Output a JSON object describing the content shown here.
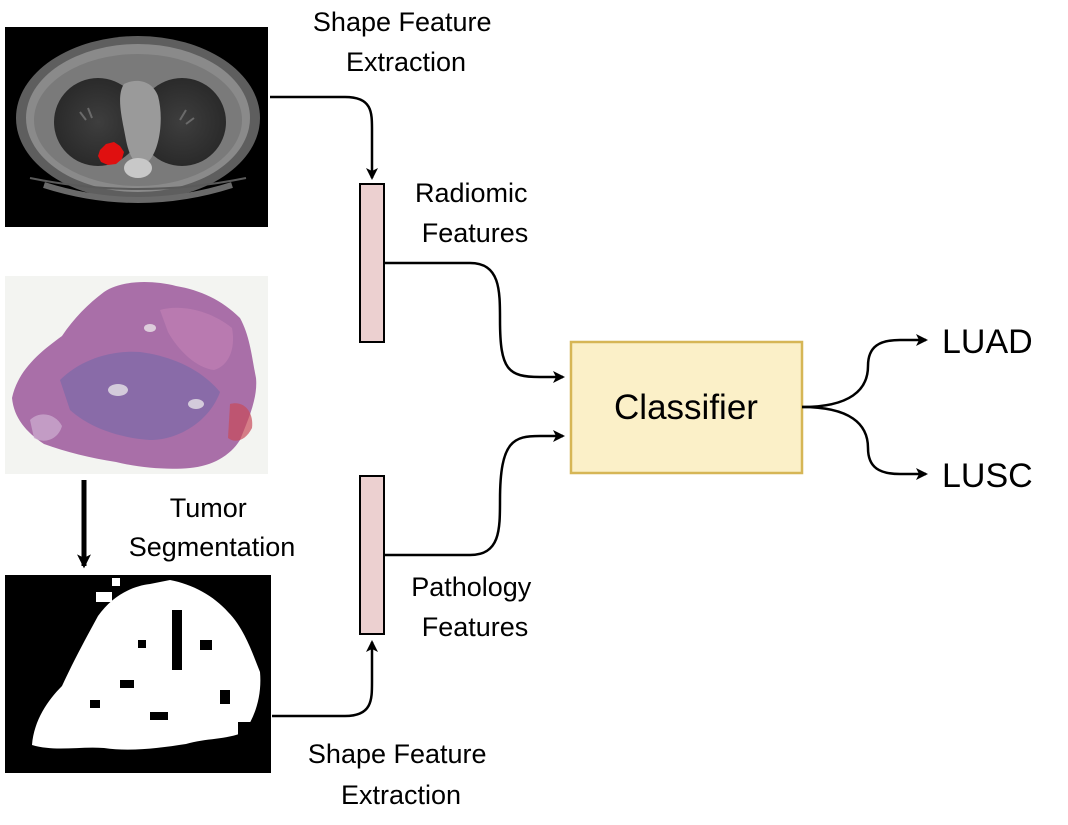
{
  "labels": {
    "shape_feature_top": [
      "Shape Feature",
      "Extraction"
    ],
    "radiomic_features": [
      "Radiomic",
      "Features"
    ],
    "tumor_segmentation": [
      "Tumor",
      "Segmentation"
    ],
    "pathology_features": [
      "Pathology",
      "Features"
    ],
    "shape_feature_bottom": [
      "Shape Feature",
      "Extraction"
    ],
    "classifier": "Classifier",
    "outputs": [
      "LUAD",
      "LUSC"
    ]
  },
  "colors": {
    "feature_bar_fill": "#ecd0d0",
    "classifier_fill": "#fbf0c8",
    "classifier_stroke": "#d6b656",
    "ct_tumor": "#e01010",
    "histology": "#9a5a9c"
  },
  "images": {
    "ct_scan": "ct-scan-image",
    "histology_slide": "histology-slide-image",
    "tumor_mask": "tumor-mask-image"
  }
}
